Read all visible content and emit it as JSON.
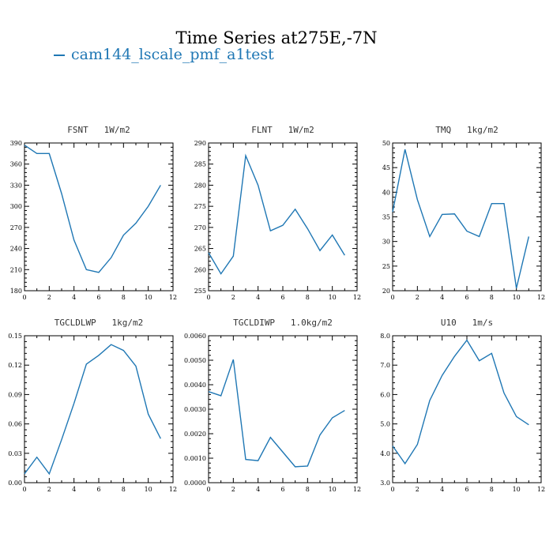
{
  "title": "Time Series at275E,-7N",
  "legend": {
    "label": "cam144_lscale_pmf_a1test",
    "color": "#1f77b4"
  },
  "chart_data": [
    {
      "type": "line",
      "title": "FSNT   1W/m2",
      "xlim": [
        0,
        12
      ],
      "ylim": [
        180,
        390
      ],
      "xticks": [
        0,
        2,
        4,
        6,
        8,
        10,
        12
      ],
      "yticks": [
        180,
        210,
        240,
        270,
        300,
        330,
        360,
        390
      ],
      "ytick_labels": [
        "180",
        "210",
        "240",
        "270",
        "300",
        "330",
        "360",
        "390"
      ],
      "x": [
        0,
        1,
        2,
        3,
        4,
        5,
        6,
        7,
        8,
        9,
        10,
        11
      ],
      "series": [
        {
          "values": [
            387,
            375,
            375,
            318,
            252,
            210,
            206,
            227,
            259,
            276,
            300,
            330
          ]
        }
      ]
    },
    {
      "type": "line",
      "title": "FLNT   1W/m2",
      "xlim": [
        0,
        12
      ],
      "ylim": [
        255,
        290
      ],
      "xticks": [
        0,
        2,
        4,
        6,
        8,
        10,
        12
      ],
      "yticks": [
        255,
        260,
        265,
        270,
        275,
        280,
        285,
        290
      ],
      "ytick_labels": [
        "255",
        "260",
        "265",
        "270",
        "275",
        "280",
        "285",
        "290"
      ],
      "x": [
        0,
        1,
        2,
        3,
        4,
        5,
        6,
        7,
        8,
        9,
        10,
        11
      ],
      "series": [
        {
          "values": [
            264,
            259,
            263.2,
            287,
            280,
            269.2,
            270.5,
            274.3,
            269.7,
            264.5,
            268.2,
            263.4
          ]
        }
      ]
    },
    {
      "type": "line",
      "title": "TMQ   1kg/m2",
      "xlim": [
        0,
        12
      ],
      "ylim": [
        20,
        50
      ],
      "xticks": [
        0,
        2,
        4,
        6,
        8,
        10,
        12
      ],
      "yticks": [
        20,
        25,
        30,
        35,
        40,
        45,
        50
      ],
      "ytick_labels": [
        "20",
        "25",
        "30",
        "35",
        "40",
        "45",
        "50"
      ],
      "x": [
        0,
        1,
        2,
        3,
        4,
        5,
        6,
        7,
        8,
        9,
        10,
        11
      ],
      "series": [
        {
          "values": [
            36,
            48.7,
            38.5,
            31,
            35.5,
            35.6,
            32.1,
            31,
            37.7,
            37.7,
            20.5,
            31
          ]
        }
      ]
    },
    {
      "type": "line",
      "title": "TGCLDLWP   1kg/m2",
      "xlim": [
        0,
        12
      ],
      "ylim": [
        0,
        0.15
      ],
      "xticks": [
        0,
        2,
        4,
        6,
        8,
        10,
        12
      ],
      "yticks": [
        0,
        0.03,
        0.06,
        0.09,
        0.12,
        0.15
      ],
      "ytick_labels": [
        "0.00",
        "0.03",
        "0.06",
        "0.09",
        "0.12",
        "0.15"
      ],
      "x": [
        0,
        1,
        2,
        3,
        4,
        5,
        6,
        7,
        8,
        9,
        10,
        11
      ],
      "series": [
        {
          "values": [
            0.009,
            0.026,
            0.009,
            0.044,
            0.081,
            0.121,
            0.13,
            0.141,
            0.135,
            0.119,
            0.07,
            0.045
          ]
        }
      ]
    },
    {
      "type": "line",
      "title": "TGCLDIWP   1.0kg/m2",
      "xlim": [
        0,
        12
      ],
      "ylim": [
        0,
        0.006
      ],
      "xticks": [
        0,
        2,
        4,
        6,
        8,
        10,
        12
      ],
      "yticks": [
        0,
        0.001,
        0.002,
        0.003,
        0.004,
        0.005,
        0.006
      ],
      "ytick_labels": [
        "0.0000",
        "0.0010",
        "0.0020",
        "0.0030",
        "0.0040",
        "0.0050",
        "0.0060"
      ],
      "x": [
        0,
        1,
        2,
        3,
        4,
        5,
        6,
        7,
        8,
        9,
        10,
        11
      ],
      "series": [
        {
          "values": [
            0.00372,
            0.00355,
            0.00503,
            0.00095,
            0.0009,
            0.00185,
            0.00125,
            0.00065,
            0.00068,
            0.00195,
            0.00265,
            0.00295
          ]
        }
      ]
    },
    {
      "type": "line",
      "title": "U10   1m/s",
      "xlim": [
        0,
        12
      ],
      "ylim": [
        3,
        8
      ],
      "xticks": [
        0,
        2,
        4,
        6,
        8,
        10,
        12
      ],
      "yticks": [
        3,
        4,
        5,
        6,
        7,
        8
      ],
      "ytick_labels": [
        "3.0",
        "4.0",
        "5.0",
        "6.0",
        "7.0",
        "8.0"
      ],
      "x": [
        0,
        1,
        2,
        3,
        4,
        5,
        6,
        7,
        8,
        9,
        10,
        11
      ],
      "series": [
        {
          "values": [
            4.25,
            3.65,
            4.3,
            5.8,
            6.65,
            7.3,
            7.85,
            7.15,
            7.4,
            6.05,
            5.25,
            4.97
          ]
        }
      ]
    }
  ]
}
